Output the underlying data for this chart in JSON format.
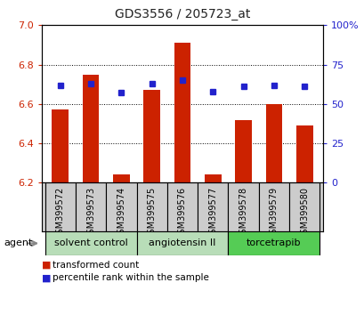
{
  "title": "GDS3556 / 205723_at",
  "samples": [
    "GSM399572",
    "GSM399573",
    "GSM399574",
    "GSM399575",
    "GSM399576",
    "GSM399577",
    "GSM399578",
    "GSM399579",
    "GSM399580"
  ],
  "bar_values": [
    6.57,
    6.75,
    6.24,
    6.67,
    6.91,
    6.24,
    6.52,
    6.6,
    6.49
  ],
  "percentile_values": [
    62,
    63,
    57,
    63,
    65,
    58,
    61,
    62,
    61
  ],
  "bar_color": "#cc2200",
  "blue_color": "#2222cc",
  "ylim_left": [
    6.2,
    7.0
  ],
  "ylim_right": [
    0,
    100
  ],
  "yticks_left": [
    6.2,
    6.4,
    6.6,
    6.8,
    7.0
  ],
  "yticks_right": [
    0,
    25,
    50,
    75,
    100
  ],
  "ytick_labels_right": [
    "0",
    "25",
    "50",
    "75",
    "100%"
  ],
  "group_labels": [
    "solvent control",
    "angiotensin II",
    "torcetrapib"
  ],
  "group_ranges": [
    [
      0,
      2
    ],
    [
      3,
      5
    ],
    [
      6,
      8
    ]
  ],
  "group_colors": [
    "#b8ddb8",
    "#b8ddb8",
    "#55cc55"
  ],
  "agent_label": "agent",
  "legend_items": [
    {
      "label": "transformed count",
      "color": "#cc2200"
    },
    {
      "label": "percentile rank within the sample",
      "color": "#2222cc"
    }
  ],
  "bar_width": 0.55,
  "background_color": "#ffffff",
  "grid_color": "#000000",
  "bar_baseline": 6.2,
  "xtick_bg": "#cccccc",
  "title_fontsize": 10
}
